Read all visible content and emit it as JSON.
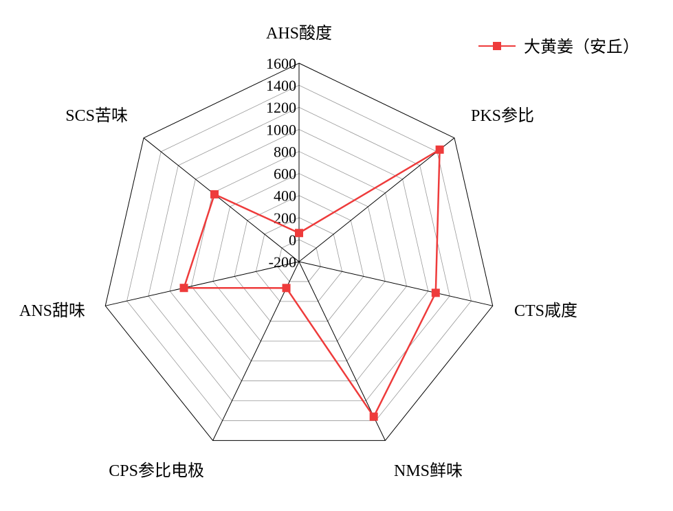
{
  "chart_data": {
    "type": "radar",
    "title": "",
    "axes": [
      "AHS酸度",
      "PKS参比",
      "CTS咸度",
      "NMS鲜味",
      "CPS参比电极",
      "ANS甜味",
      "SCS苦味"
    ],
    "range": [
      -200,
      1600
    ],
    "ticks": [
      -200,
      0,
      200,
      400,
      600,
      800,
      1000,
      1200,
      1400,
      1600
    ],
    "tick_labels": [
      "-200",
      "0",
      "200",
      "400",
      "600",
      "800",
      "1000",
      "1200",
      "1400",
      "1600"
    ],
    "grid": true,
    "legend_position": "top-right",
    "series": [
      {
        "name": "大黄姜（安丘）",
        "color": "#ee3b3b",
        "marker": "square",
        "values": [
          60,
          1430,
          1070,
          1360,
          65,
          870,
          780
        ]
      }
    ]
  }
}
